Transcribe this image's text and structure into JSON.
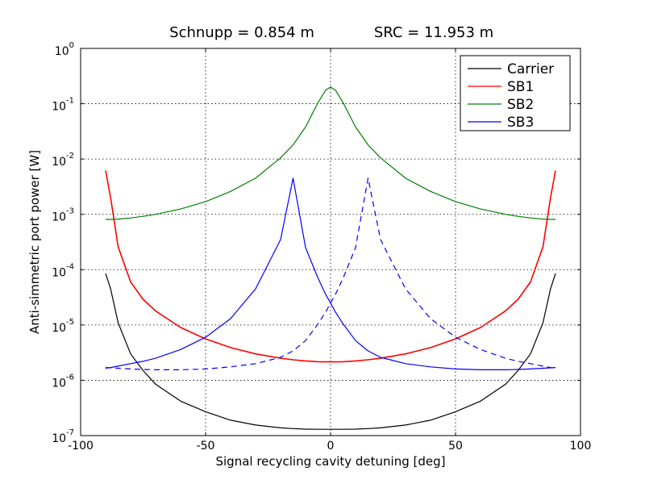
{
  "chart_data": {
    "type": "line",
    "title_left": "Schnupp = 0.854 m",
    "title_right": "SRC = 11.953 m",
    "xlabel": "Signal recycling cavity detuning [deg]",
    "ylabel": "Anti-simmetric port power [W]",
    "xlim": [
      -100,
      100
    ],
    "ylim": [
      1e-07,
      1
    ],
    "yscale": "log",
    "grid": true,
    "legend_position": "top-right",
    "xticks": [
      "-100",
      "-50",
      "0",
      "50",
      "100"
    ],
    "yticks": [
      {
        "base": "10",
        "exp": "0",
        "value": 1
      },
      {
        "base": "10",
        "exp": "-1",
        "value": 0.1
      },
      {
        "base": "10",
        "exp": "-2",
        "value": 0.01
      },
      {
        "base": "10",
        "exp": "-3",
        "value": 0.001
      },
      {
        "base": "10",
        "exp": "-4",
        "value": 0.0001
      },
      {
        "base": "10",
        "exp": "-5",
        "value": 1e-05
      },
      {
        "base": "10",
        "exp": "-6",
        "value": 1e-06
      },
      {
        "base": "10",
        "exp": "-7",
        "value": 1e-07
      }
    ],
    "x": [
      -90,
      -88,
      -85,
      -80,
      -75,
      -70,
      -60,
      -50,
      -40,
      -30,
      -20,
      -15,
      -10,
      -5,
      -2,
      0,
      2,
      5,
      10,
      15,
      20,
      30,
      40,
      50,
      60,
      70,
      75,
      80,
      85,
      88,
      90
    ],
    "series": [
      {
        "name": "Carrier",
        "color": "#000000",
        "dash": false,
        "values": [
          8.5e-05,
          4.5e-05,
          1.1e-05,
          3e-06,
          1.5e-06,
          8.5e-07,
          4.2e-07,
          2.7e-07,
          1.9e-07,
          1.55e-07,
          1.38e-07,
          1.34e-07,
          1.31e-07,
          1.3e-07,
          1.3e-07,
          1.3e-07,
          1.3e-07,
          1.3e-07,
          1.31e-07,
          1.34e-07,
          1.38e-07,
          1.55e-07,
          1.9e-07,
          2.7e-07,
          4.2e-07,
          8.5e-07,
          1.5e-06,
          3e-06,
          1.1e-05,
          4.5e-05,
          8.5e-05
        ]
      },
      {
        "name": "SB1",
        "color": "#ff0000",
        "dash": false,
        "values": [
          0.0062,
          0.002,
          0.00026,
          6e-05,
          2.9e-05,
          1.8e-05,
          9e-06,
          5.6e-06,
          3.9e-06,
          3e-06,
          2.5e-06,
          2.35e-06,
          2.24e-06,
          2.17e-06,
          2.15e-06,
          2.15e-06,
          2.15e-06,
          2.17e-06,
          2.24e-06,
          2.35e-06,
          2.5e-06,
          3e-06,
          3.9e-06,
          5.6e-06,
          9e-06,
          1.8e-05,
          2.9e-05,
          6e-05,
          0.00026,
          0.002,
          0.0062
        ]
      },
      {
        "name": "SB2",
        "color": "#008000",
        "dash": false,
        "values": [
          0.00081,
          0.00081,
          0.00082,
          0.00086,
          0.00092,
          0.001,
          0.00125,
          0.0017,
          0.0026,
          0.0045,
          0.0105,
          0.018,
          0.038,
          0.105,
          0.175,
          0.2,
          0.175,
          0.105,
          0.038,
          0.018,
          0.0105,
          0.0045,
          0.0026,
          0.0017,
          0.00125,
          0.001,
          0.00092,
          0.00086,
          0.00082,
          0.00081,
          0.00081
        ]
      },
      {
        "name": "SB3",
        "color": "#0000ff",
        "dash": false,
        "legend": true,
        "values": [
          1.65e-06,
          1.7e-06,
          1.8e-06,
          2e-06,
          2.2e-06,
          2.5e-06,
          3.6e-06,
          6e-06,
          1.3e-05,
          4.5e-05,
          0.00035,
          0.0045,
          0.00025,
          7e-05,
          3.6e-05,
          2.5e-05,
          1.7e-05,
          1.05e-05,
          5.2e-06,
          3.4e-06,
          2.6e-06,
          2e-06,
          1.75e-06,
          1.6e-06,
          1.55e-06,
          1.55e-06,
          1.57e-06,
          1.6e-06,
          1.65e-06,
          1.68e-06,
          1.7e-06
        ]
      },
      {
        "name": "",
        "color": "#0000ff",
        "dash": true,
        "legend": false,
        "values": [
          1.7e-06,
          1.68e-06,
          1.65e-06,
          1.6e-06,
          1.57e-06,
          1.55e-06,
          1.55e-06,
          1.6e-06,
          1.75e-06,
          2e-06,
          2.6e-06,
          3.4e-06,
          5.2e-06,
          1.05e-05,
          1.7e-05,
          2.5e-05,
          3.6e-05,
          7e-05,
          0.00025,
          0.0045,
          0.00035,
          4.5e-05,
          1.3e-05,
          6e-06,
          3.6e-06,
          2.5e-06,
          2.2e-06,
          2e-06,
          1.8e-06,
          1.7e-06,
          1.65e-06
        ]
      }
    ]
  }
}
